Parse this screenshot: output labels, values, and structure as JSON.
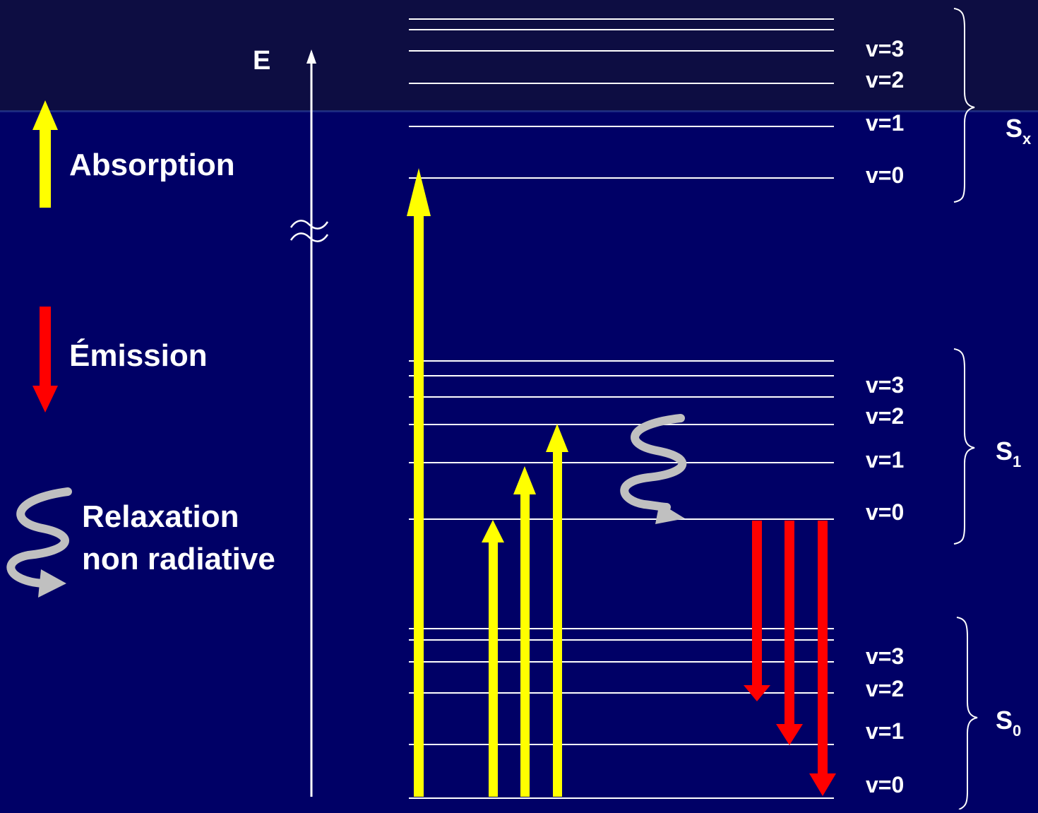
{
  "legend": {
    "absorption_label": "Absorption",
    "emission_label": "Émission",
    "relaxation_label_line1": "Relaxation",
    "relaxation_label_line2": "non radiative"
  },
  "axis": {
    "label": "E",
    "break_symbol": "≈"
  },
  "states": {
    "sx": {
      "base": "S",
      "sub": "x",
      "levels": [
        "v=3",
        "v=2",
        "v=1",
        "v=0"
      ]
    },
    "s1": {
      "base": "S",
      "sub": "1",
      "levels": [
        "v=3",
        "v=2",
        "v=1",
        "v=0"
      ]
    },
    "s0": {
      "base": "S",
      "sub": "0",
      "levels": [
        "v=3",
        "v=2",
        "v=1",
        "v=0"
      ]
    }
  },
  "colors": {
    "background_top": "#0a0a3c",
    "background": "#000066",
    "absorption": "#ffff00",
    "emission": "#ff0000",
    "relaxation": "#c0c0c0",
    "lines": "#ffffff"
  }
}
